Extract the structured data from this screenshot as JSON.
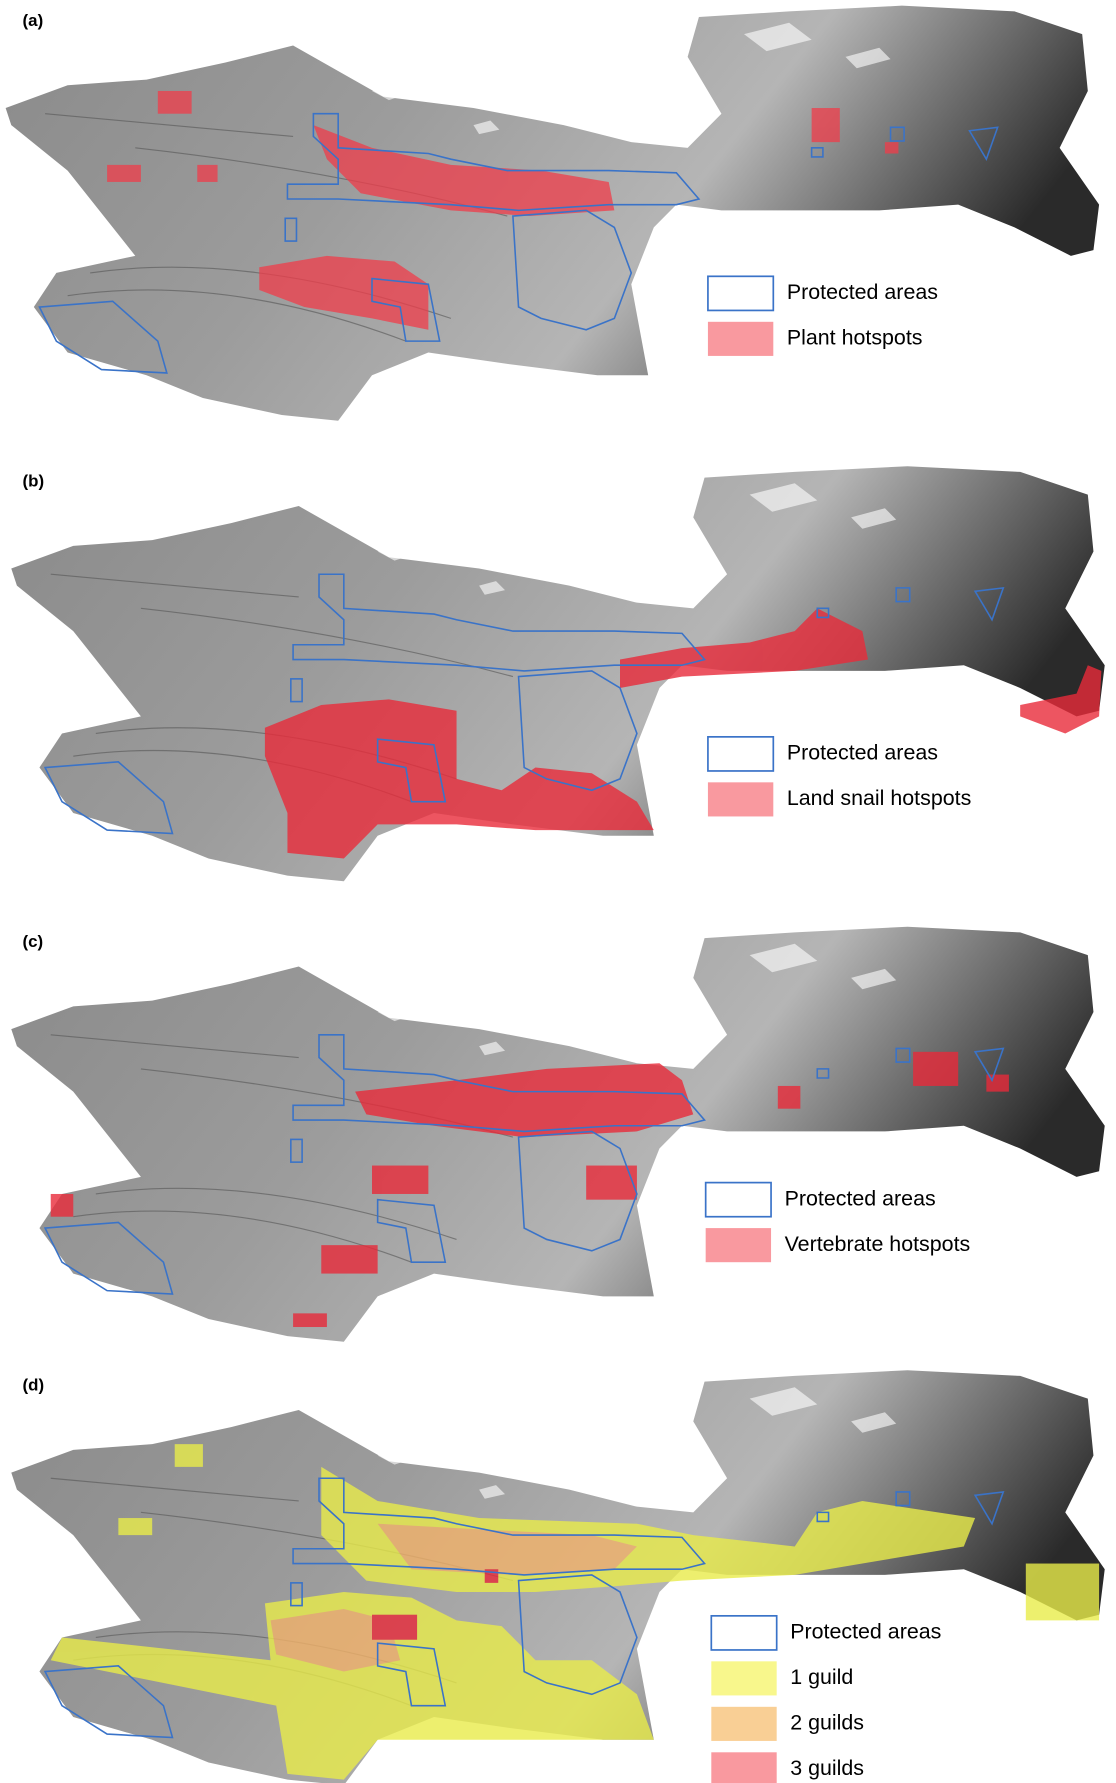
{
  "panels": [
    {
      "label": "(a)",
      "legend": [
        "Protected areas",
        "Plant hotspots"
      ]
    },
    {
      "label": "(b)",
      "legend": [
        "Protected areas",
        "Land snail hotspots"
      ]
    },
    {
      "label": "(c)",
      "legend": [
        "Protected areas",
        "Vertebrate hotspots"
      ]
    },
    {
      "label": "(d)",
      "legend": [
        "Protected areas",
        "1 guild",
        "2 guilds",
        "3 guilds"
      ]
    }
  ]
}
